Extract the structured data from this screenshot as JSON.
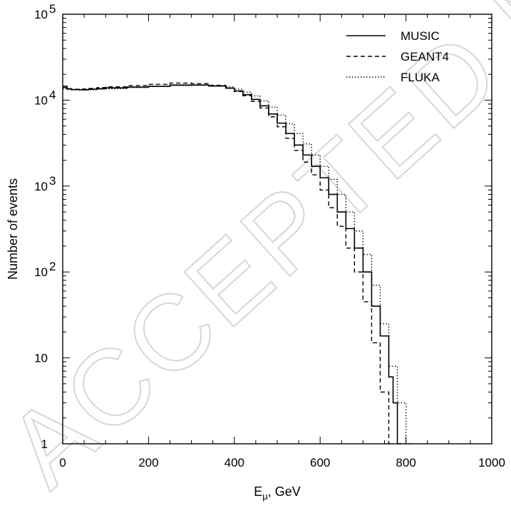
{
  "watermark": "ACCEPTED MANUSCRIPT",
  "chart_data": {
    "type": "line",
    "step": true,
    "xlabel_main": "E",
    "xlabel_sub": "μ",
    "xlabel_rest": ", GeV",
    "ylabel": "Number of events",
    "xlim": [
      0,
      1000
    ],
    "ylim": [
      1,
      100000
    ],
    "yscale": "log",
    "xticks": [
      {
        "value": 0,
        "label": "0"
      },
      {
        "value": 200,
        "label": "200"
      },
      {
        "value": 400,
        "label": "400"
      },
      {
        "value": 600,
        "label": "600"
      },
      {
        "value": 800,
        "label": "800"
      },
      {
        "value": 1000,
        "label": "1000"
      }
    ],
    "yticks": [
      {
        "value": 1,
        "base": "1",
        "exp": ""
      },
      {
        "value": 10,
        "base": "10",
        "exp": ""
      },
      {
        "value": 100,
        "base": "10",
        "exp": "2"
      },
      {
        "value": 1000,
        "base": "10",
        "exp": "3"
      },
      {
        "value": 10000,
        "base": "10",
        "exp": "4"
      },
      {
        "value": 100000,
        "base": "10",
        "exp": "5"
      }
    ],
    "legend_position": "top-right",
    "series": [
      {
        "name": "MUSIC",
        "dash": "solid",
        "x": [
          0,
          10,
          20,
          40,
          60,
          80,
          100,
          150,
          200,
          250,
          300,
          340,
          380,
          400,
          420,
          440,
          460,
          480,
          500,
          520,
          540,
          560,
          580,
          600,
          620,
          640,
          660,
          680,
          700,
          720,
          740,
          760,
          770,
          780
        ],
        "y": [
          14500,
          13600,
          13300,
          13200,
          13400,
          13600,
          13900,
          14200,
          14500,
          15000,
          15000,
          14600,
          13800,
          12800,
          11600,
          10200,
          8600,
          6900,
          5400,
          4100,
          3000,
          2300,
          1700,
          1250,
          800,
          500,
          320,
          190,
          100,
          40,
          18,
          6,
          3,
          1
        ]
      },
      {
        "name": "GEANT4",
        "dash": "dashed",
        "x": [
          0,
          10,
          20,
          40,
          60,
          80,
          100,
          150,
          200,
          250,
          300,
          340,
          380,
          400,
          420,
          440,
          460,
          480,
          500,
          520,
          540,
          560,
          580,
          600,
          620,
          640,
          660,
          680,
          700,
          720,
          740,
          760
        ],
        "y": [
          14000,
          13500,
          13400,
          13500,
          13700,
          14000,
          14300,
          14800,
          15300,
          15800,
          15600,
          14900,
          13800,
          12600,
          11300,
          9700,
          8100,
          6400,
          4900,
          3600,
          2600,
          1900,
          1350,
          900,
          560,
          340,
          190,
          100,
          45,
          15,
          4,
          1
        ]
      },
      {
        "name": "FLUKA",
        "dash": "dotted",
        "x": [
          0,
          10,
          20,
          40,
          60,
          80,
          100,
          150,
          200,
          250,
          300,
          340,
          380,
          400,
          420,
          440,
          460,
          480,
          500,
          520,
          540,
          560,
          580,
          600,
          620,
          640,
          660,
          680,
          700,
          720,
          740,
          760,
          780,
          800,
          810
        ],
        "y": [
          13500,
          13200,
          13100,
          13100,
          13200,
          13400,
          13600,
          14000,
          14400,
          14800,
          14900,
          14800,
          14300,
          13400,
          12400,
          11200,
          9800,
          8300,
          6700,
          5300,
          4100,
          3100,
          2300,
          1700,
          1200,
          800,
          500,
          300,
          160,
          70,
          25,
          8,
          3,
          1,
          1
        ]
      }
    ]
  }
}
